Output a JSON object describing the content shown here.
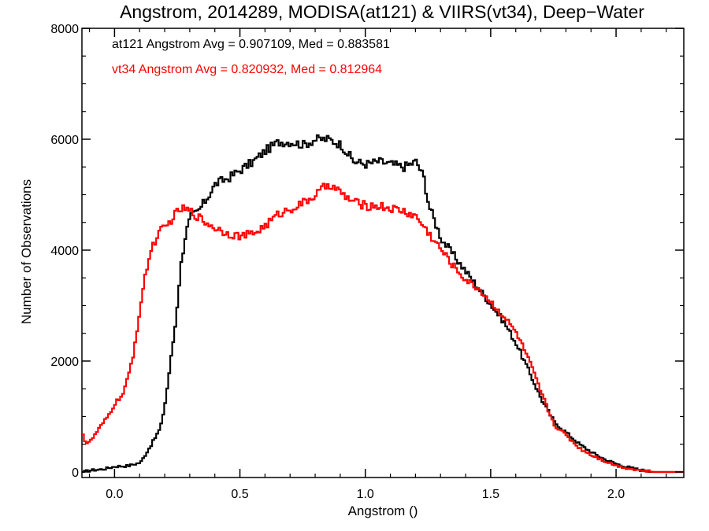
{
  "chart_data": {
    "type": "line",
    "step": true,
    "title": "Angstrom, 2014289, MODISA(at121) & VIIRS(vt34), Deep−Water",
    "xlabel": "Angstrom ()",
    "ylabel": "Number of Observations",
    "xlim": [
      -0.13,
      2.27
    ],
    "ylim": [
      -100,
      8000
    ],
    "grid": false,
    "x_ticks": [
      0.0,
      0.5,
      1.0,
      1.5,
      2.0
    ],
    "x_tick_labels": [
      "0.0",
      "0.5",
      "1.0",
      "1.5",
      "2.0"
    ],
    "y_ticks": [
      0,
      2000,
      4000,
      6000,
      8000
    ],
    "y_tick_labels": [
      "0",
      "2000",
      "4000",
      "6000",
      "8000"
    ],
    "annotations": [
      {
        "text": "at121 Angstrom Avg = 0.907109, Med = 0.883581",
        "color": "#000000"
      },
      {
        "text": "vt34 Angstrom Avg = 0.820932, Med = 0.812964",
        "color": "#ff0000"
      }
    ],
    "series": [
      {
        "color": "#000000",
        "points": [
          [
            -0.13,
            0
          ],
          [
            -0.1,
            30
          ],
          [
            -0.05,
            50
          ],
          [
            0.0,
            100
          ],
          [
            0.05,
            110
          ],
          [
            0.1,
            170
          ],
          [
            0.15,
            550
          ],
          [
            0.18,
            800
          ],
          [
            0.2,
            1300
          ],
          [
            0.22,
            2000
          ],
          [
            0.24,
            2700
          ],
          [
            0.26,
            3700
          ],
          [
            0.28,
            4300
          ],
          [
            0.3,
            4600
          ],
          [
            0.33,
            4700
          ],
          [
            0.36,
            4900
          ],
          [
            0.4,
            5200
          ],
          [
            0.45,
            5300
          ],
          [
            0.5,
            5450
          ],
          [
            0.55,
            5600
          ],
          [
            0.6,
            5800
          ],
          [
            0.65,
            5950
          ],
          [
            0.7,
            5950
          ],
          [
            0.75,
            5900
          ],
          [
            0.8,
            6000
          ],
          [
            0.85,
            6000
          ],
          [
            0.9,
            5900
          ],
          [
            0.95,
            5600
          ],
          [
            1.0,
            5550
          ],
          [
            1.05,
            5600
          ],
          [
            1.1,
            5550
          ],
          [
            1.15,
            5500
          ],
          [
            1.2,
            5600
          ],
          [
            1.23,
            5300
          ],
          [
            1.25,
            4800
          ],
          [
            1.3,
            4200
          ],
          [
            1.35,
            3900
          ],
          [
            1.4,
            3600
          ],
          [
            1.45,
            3300
          ],
          [
            1.5,
            3000
          ],
          [
            1.55,
            2700
          ],
          [
            1.6,
            2300
          ],
          [
            1.65,
            1800
          ],
          [
            1.7,
            1300
          ],
          [
            1.75,
            900
          ],
          [
            1.8,
            700
          ],
          [
            1.85,
            500
          ],
          [
            1.9,
            350
          ],
          [
            1.95,
            230
          ],
          [
            2.0,
            140
          ],
          [
            2.05,
            80
          ],
          [
            2.1,
            30
          ],
          [
            2.15,
            0
          ],
          [
            2.27,
            0
          ]
        ]
      },
      {
        "color": "#ff0000",
        "points": [
          [
            -0.13,
            700
          ],
          [
            -0.12,
            520
          ],
          [
            -0.1,
            550
          ],
          [
            -0.07,
            750
          ],
          [
            -0.03,
            1000
          ],
          [
            0.0,
            1250
          ],
          [
            0.03,
            1400
          ],
          [
            0.05,
            1700
          ],
          [
            0.07,
            2100
          ],
          [
            0.09,
            2700
          ],
          [
            0.11,
            3300
          ],
          [
            0.13,
            3800
          ],
          [
            0.15,
            4100
          ],
          [
            0.18,
            4350
          ],
          [
            0.2,
            4400
          ],
          [
            0.23,
            4600
          ],
          [
            0.26,
            4750
          ],
          [
            0.3,
            4700
          ],
          [
            0.33,
            4600
          ],
          [
            0.36,
            4500
          ],
          [
            0.4,
            4400
          ],
          [
            0.45,
            4300
          ],
          [
            0.5,
            4250
          ],
          [
            0.55,
            4300
          ],
          [
            0.6,
            4450
          ],
          [
            0.65,
            4650
          ],
          [
            0.7,
            4750
          ],
          [
            0.75,
            4850
          ],
          [
            0.8,
            5000
          ],
          [
            0.85,
            5200
          ],
          [
            0.88,
            5100
          ],
          [
            0.92,
            4950
          ],
          [
            0.96,
            4850
          ],
          [
            1.0,
            4800
          ],
          [
            1.05,
            4800
          ],
          [
            1.1,
            4750
          ],
          [
            1.15,
            4700
          ],
          [
            1.2,
            4600
          ],
          [
            1.25,
            4300
          ],
          [
            1.3,
            4000
          ],
          [
            1.35,
            3700
          ],
          [
            1.4,
            3450
          ],
          [
            1.45,
            3300
          ],
          [
            1.5,
            3050
          ],
          [
            1.55,
            2800
          ],
          [
            1.6,
            2500
          ],
          [
            1.65,
            2000
          ],
          [
            1.7,
            1400
          ],
          [
            1.75,
            850
          ],
          [
            1.8,
            650
          ],
          [
            1.85,
            430
          ],
          [
            1.9,
            300
          ],
          [
            1.95,
            200
          ],
          [
            2.0,
            110
          ],
          [
            2.05,
            60
          ],
          [
            2.1,
            25
          ],
          [
            2.15,
            0
          ],
          [
            2.27,
            0
          ]
        ]
      }
    ]
  }
}
